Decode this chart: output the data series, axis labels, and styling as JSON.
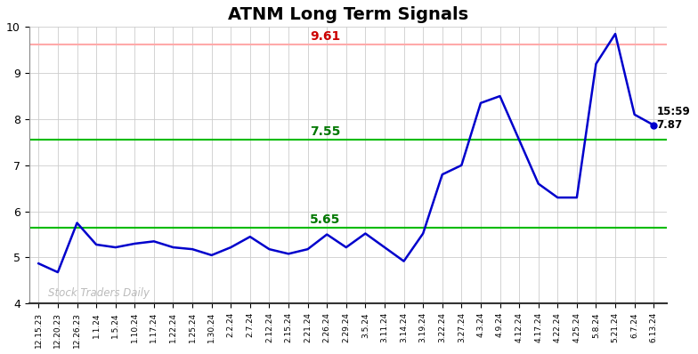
{
  "title": "ATNM Long Term Signals",
  "watermark": "Stock Traders Daily",
  "hline_red": 9.61,
  "hline_green_upper": 7.55,
  "hline_green_lower": 5.65,
  "last_time": "15:59",
  "last_price": 7.87,
  "ylim": [
    4,
    10
  ],
  "x_labels": [
    "12.15.23",
    "12.20.23",
    "12.26.23",
    "1.1.24",
    "1.5.24",
    "1.10.24",
    "1.17.24",
    "1.22.24",
    "1.25.24",
    "1.30.24",
    "2.2.24",
    "2.7.24",
    "2.12.24",
    "2.15.24",
    "2.21.24",
    "2.26.24",
    "2.29.24",
    "3.5.24",
    "3.11.24",
    "3.14.24",
    "3.19.24",
    "3.22.24",
    "3.27.24",
    "4.3.24",
    "4.9.24",
    "4.12.24",
    "4.17.24",
    "4.22.24",
    "4.25.24",
    "5.8.24",
    "5.21.24",
    "6.7.24",
    "6.13.24"
  ],
  "y_values": [
    4.87,
    4.68,
    5.75,
    5.28,
    5.22,
    5.3,
    5.35,
    5.22,
    5.18,
    5.05,
    5.22,
    5.45,
    5.18,
    5.08,
    5.18,
    5.5,
    5.22,
    5.52,
    5.22,
    4.92,
    5.52,
    6.8,
    7.0,
    8.35,
    8.5,
    7.55,
    6.6,
    6.3,
    6.3,
    9.2,
    9.85,
    8.1,
    7.87
  ],
  "line_color": "#0000cc",
  "red_line_color": "#ffaaaa",
  "green_line_color": "#00bb00",
  "annotation_red_color": "#cc0000",
  "annotation_green_color": "#007700",
  "bg_color": "#ffffff",
  "grid_color": "#cccccc",
  "title_fontsize": 14,
  "watermark_color": "#bbbbbb",
  "dot_color": "#0000cc"
}
